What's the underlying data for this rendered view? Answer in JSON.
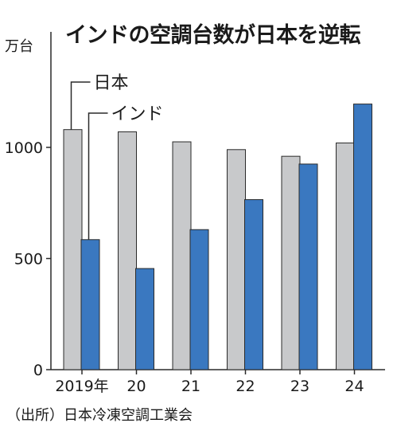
{
  "title": "インドの空調台数が日本を逆転",
  "unit": "万台",
  "source": "（出所）日本冷凍空調工業会",
  "colors": {
    "japan": "#c8c9cb",
    "india": "#3a78c0",
    "outline": "#2a2a2a"
  },
  "chart_data": {
    "type": "bar",
    "categories": [
      "2019年",
      "20",
      "21",
      "22",
      "23",
      "24"
    ],
    "series": [
      {
        "name": "日本",
        "values": [
          1080,
          1070,
          1025,
          990,
          960,
          1020
        ]
      },
      {
        "name": "インド",
        "values": [
          585,
          455,
          630,
          765,
          925,
          1195
        ]
      }
    ],
    "ylim": [
      0,
      1400
    ],
    "yticks": [
      0,
      500,
      1000
    ],
    "grid": false,
    "legend": "callout-top-left"
  }
}
